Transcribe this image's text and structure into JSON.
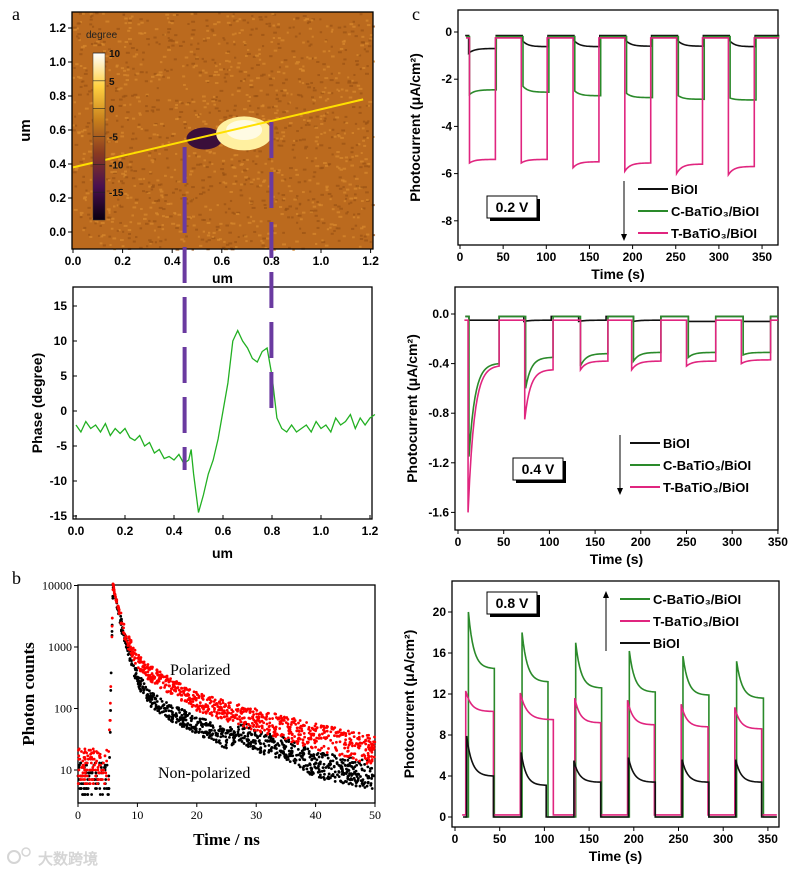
{
  "figure": {
    "panel_labels": {
      "a": "a",
      "b": "b",
      "c": "c"
    },
    "watermark": "大数跨境"
  },
  "chart_data": [
    {
      "id": "a-afm",
      "type": "heatmap",
      "title": "",
      "xlabel": "um",
      "ylabel": "um",
      "xlim": [
        0,
        1.2
      ],
      "ylim": [
        -0.1,
        1.3
      ],
      "xticks": [
        0,
        0.2,
        0.4,
        0.6,
        0.8,
        1.0,
        1.2
      ],
      "xtick_labels": [
        "0.0",
        "0.2",
        "0.4",
        "0.6",
        "0.8",
        "1.0",
        "1.2"
      ],
      "yticks": [
        0,
        0.2,
        0.4,
        0.6,
        0.8,
        1.0,
        1.2
      ],
      "ytick_labels": [
        "0.0",
        "0.2",
        "0.4",
        "0.6",
        "0.8",
        "1.0",
        "1.2"
      ],
      "colorbar": {
        "label": "degree",
        "range": [
          -20,
          10
        ],
        "ticks": [
          10,
          5,
          0,
          -5,
          -10,
          -15
        ],
        "tick_labels": [
          "10",
          "5",
          "0",
          "-5",
          "-10",
          "-15"
        ]
      },
      "line_profile": {
        "from": [
          0,
          0.38
        ],
        "to": [
          1.17,
          0.78
        ],
        "color": "#ffe000"
      },
      "markers_um": [
        0.45,
        0.8
      ],
      "marker_color": "#6a3aa0"
    },
    {
      "id": "a-phase",
      "type": "line",
      "title": "",
      "xlabel": "um",
      "ylabel": "Phase (degree)",
      "xlim": [
        0,
        1.22
      ],
      "ylim": [
        -15,
        17
      ],
      "xticks": [
        0,
        0.2,
        0.4,
        0.6,
        0.8,
        1.0,
        1.2
      ],
      "xtick_labels": [
        "0.0",
        "0.2",
        "0.4",
        "0.6",
        "0.8",
        "1.0",
        "1.2"
      ],
      "yticks": [
        15,
        10,
        5,
        0,
        -5,
        -10,
        -15
      ],
      "ytick_labels": [
        "15",
        "10",
        "5",
        "0",
        "-5",
        "-10",
        "-15"
      ],
      "color": "#22b022",
      "x": [
        0,
        0.02,
        0.04,
        0.06,
        0.08,
        0.1,
        0.12,
        0.14,
        0.16,
        0.18,
        0.2,
        0.22,
        0.24,
        0.26,
        0.28,
        0.3,
        0.32,
        0.34,
        0.36,
        0.38,
        0.4,
        0.42,
        0.44,
        0.46,
        0.47,
        0.48,
        0.5,
        0.52,
        0.54,
        0.56,
        0.58,
        0.6,
        0.62,
        0.64,
        0.66,
        0.68,
        0.7,
        0.72,
        0.74,
        0.76,
        0.78,
        0.8,
        0.82,
        0.84,
        0.86,
        0.88,
        0.9,
        0.92,
        0.94,
        0.96,
        0.98,
        1.0,
        1.02,
        1.04,
        1.06,
        1.08,
        1.1,
        1.12,
        1.14,
        1.16,
        1.18,
        1.2,
        1.22
      ],
      "y": [
        -2,
        -3,
        -1.5,
        -2.5,
        -2,
        -3,
        -1.8,
        -3.5,
        -2.5,
        -3.2,
        -2.5,
        -3.8,
        -4.2,
        -3.5,
        -5,
        -4.5,
        -6,
        -5.5,
        -6.8,
        -6.5,
        -7,
        -6.2,
        -7.5,
        -7,
        -5.5,
        -9,
        -14.5,
        -12,
        -9,
        -7,
        -4,
        0,
        4,
        10,
        11.5,
        10,
        9,
        7.5,
        7,
        8.5,
        9,
        5,
        -1,
        -2.5,
        -3,
        -2,
        -3,
        -2.5,
        -2,
        -3,
        -1.5,
        -2.5,
        -2,
        -3,
        -1,
        -2,
        -1.5,
        -0.5,
        -2.5,
        -1,
        -2,
        -1,
        -0.5
      ],
      "markers_um": [
        0.45,
        0.8
      ]
    },
    {
      "id": "b",
      "type": "scatter",
      "title": "",
      "xlabel": "Time / ns",
      "ylabel": "Photon counts",
      "yscale": "log",
      "xlim": [
        0,
        50
      ],
      "ylim": [
        3,
        10000
      ],
      "xticks": [
        0,
        10,
        20,
        30,
        40,
        50
      ],
      "xtick_labels": [
        "0",
        "10",
        "20",
        "30",
        "40",
        "50"
      ],
      "yticks": [
        10,
        100,
        1000,
        10000
      ],
      "ytick_labels": [
        "10",
        "100",
        "1000",
        "10000"
      ],
      "series": [
        {
          "name": "Polarized",
          "color": "#ff0000",
          "x": [
            0,
            5.2,
            5.9,
            7,
            8,
            10,
            12,
            15,
            20,
            25,
            30,
            35,
            40,
            45,
            50
          ],
          "y": [
            11,
            12,
            10000,
            3500,
            1500,
            600,
            380,
            250,
            130,
            90,
            65,
            48,
            35,
            27,
            20
          ]
        },
        {
          "name": "Non-polarized",
          "color": "#000000",
          "x": [
            0,
            5.2,
            5.9,
            7,
            8,
            10,
            12,
            15,
            20,
            25,
            27,
            30,
            35,
            40,
            45,
            50
          ],
          "y": [
            7,
            7,
            10000,
            3000,
            1200,
            300,
            150,
            90,
            55,
            32,
            45,
            30,
            22,
            12,
            10,
            8
          ]
        }
      ],
      "annotations": [
        "Polarized",
        "Non-polarized"
      ]
    },
    {
      "id": "c-0.2V",
      "type": "line",
      "title": "",
      "xlabel": "Time (s)",
      "ylabel": "Photocurrent (μA/cm²)",
      "xlim": [
        0,
        370
      ],
      "ylim": [
        -9,
        0.9
      ],
      "xticks": [
        0,
        50,
        100,
        150,
        200,
        250,
        300,
        350
      ],
      "xtick_labels": [
        "0",
        "50",
        "100",
        "150",
        "200",
        "250",
        "300",
        "350"
      ],
      "yticks": [
        0,
        -2,
        -4,
        -6,
        -8
      ],
      "ytick_labels": [
        "0",
        "-2",
        "-4",
        "-6",
        "-8"
      ],
      "bias_label": "0.2 V",
      "arrow": "down",
      "series": [
        {
          "name": "BiOI",
          "color": "#111111",
          "dark": -0.15,
          "cycles": [
            [
              10,
              42,
              -0.9,
              -0.7
            ],
            [
              72,
              102,
              -0.35,
              -0.62
            ],
            [
              132,
              162,
              -0.35,
              -0.62
            ],
            [
              192,
              222,
              -0.35,
              -0.6
            ],
            [
              252,
              282,
              -0.35,
              -0.6
            ],
            [
              312,
              342,
              -0.35,
              -0.62
            ]
          ]
        },
        {
          "name": "C-BaTiO₃/BiOI",
          "color": "#2a8a2a",
          "dark": -0.2,
          "cycles": [
            [
              11,
              42,
              -2.65,
              -2.45
            ],
            [
              73,
              103,
              -2.3,
              -2.55
            ],
            [
              133,
              163,
              -2.5,
              -2.7
            ],
            [
              193,
              223,
              -2.6,
              -2.78
            ],
            [
              253,
              283,
              -2.7,
              -2.85
            ],
            [
              313,
              343,
              -2.8,
              -2.88
            ]
          ]
        },
        {
          "name": "T-BaTiO₃/BiOI",
          "color": "#e0257f",
          "dark": -0.25,
          "cycles": [
            [
              11,
              41,
              -5.55,
              -5.4
            ],
            [
              71,
              101,
              -5.55,
              -5.4
            ],
            [
              131,
              161,
              -5.75,
              -5.5
            ],
            [
              191,
              221,
              -5.9,
              -5.55
            ],
            [
              251,
              281,
              -6.0,
              -5.6
            ],
            [
              311,
              341,
              -6.05,
              -5.7
            ]
          ]
        }
      ]
    },
    {
      "id": "c-0.4V",
      "type": "line",
      "title": "",
      "xlabel": "Time (s)",
      "ylabel": "Photocurrent (μA/cm²)",
      "xlim": [
        0,
        350
      ],
      "ylim": [
        -1.75,
        0.2
      ],
      "xticks": [
        0,
        50,
        100,
        150,
        200,
        250,
        300,
        350
      ],
      "xtick_labels": [
        "0",
        "50",
        "100",
        "150",
        "200",
        "250",
        "300",
        "350"
      ],
      "yticks": [
        0,
        -0.4,
        -0.8,
        -1.2,
        -1.6
      ],
      "ytick_labels": [
        "0.0",
        "-0.4",
        "-0.8",
        "-1.2",
        "-1.6"
      ],
      "bias_label": "0.4 V",
      "arrow": "down",
      "series": [
        {
          "name": "BiOI",
          "color": "#111111",
          "dark": -0.02,
          "cycles": [
            [
              12,
              45,
              -0.05,
              -0.05
            ],
            [
              72,
              102,
              -0.06,
              -0.05
            ],
            [
              132,
              162,
              -0.06,
              -0.05
            ],
            [
              192,
              222,
              -0.06,
              -0.05
            ],
            [
              252,
              282,
              -0.06,
              -0.06
            ],
            [
              312,
              342,
              -0.06,
              -0.06
            ]
          ]
        },
        {
          "name": "C-BaTiO₃/BiOI",
          "color": "#2a8a2a",
          "dark": -0.02,
          "cycles": [
            [
              12,
              45,
              -1.15,
              -0.4
            ],
            [
              74,
              104,
              -0.6,
              -0.35
            ],
            [
              134,
              164,
              -0.42,
              -0.32
            ],
            [
              192,
              222,
              -0.38,
              -0.31
            ],
            [
              252,
              282,
              -0.35,
              -0.31
            ],
            [
              312,
              342,
              -0.33,
              -0.31
            ]
          ]
        },
        {
          "name": "T-BaTiO₃/BiOI",
          "color": "#e0257f",
          "dark": -0.05,
          "cycles": [
            [
              11,
              45,
              -1.6,
              -0.42
            ],
            [
              73,
              104,
              -0.85,
              -0.45
            ],
            [
              134,
              164,
              -0.45,
              -0.38
            ],
            [
              190,
              222,
              -0.45,
              -0.38
            ],
            [
              250,
              282,
              -0.42,
              -0.38
            ],
            [
              310,
              342,
              -0.4,
              -0.37
            ]
          ]
        }
      ]
    },
    {
      "id": "c-0.8V",
      "type": "line",
      "title": "",
      "xlabel": "Time (s)",
      "ylabel": "Photocurrent (μA/cm²)",
      "xlim": [
        0,
        360
      ],
      "ylim": [
        -1,
        23
      ],
      "xticks": [
        0,
        50,
        100,
        150,
        200,
        250,
        300,
        350
      ],
      "xtick_labels": [
        "0",
        "50",
        "100",
        "150",
        "200",
        "250",
        "300",
        "350"
      ],
      "yticks": [
        0,
        4,
        8,
        12,
        16,
        20
      ],
      "ytick_labels": [
        "0",
        "4",
        "8",
        "12",
        "16",
        "20"
      ],
      "bias_label": "0.8 V",
      "arrow": "up",
      "series": [
        {
          "name": "C-BaTiO₃/BiOI",
          "color": "#2a8a2a",
          "dark": 0,
          "cycles": [
            [
              15,
              44,
              20,
              14.5
            ],
            [
              75,
              104,
              18,
              13.2
            ],
            [
              135,
              164,
              17,
              12.6
            ],
            [
              195,
              224,
              16.2,
              12.2
            ],
            [
              255,
              284,
              15.7,
              11.9
            ],
            [
              315,
              345,
              15.2,
              11.6
            ]
          ]
        },
        {
          "name": "T-BaTiO₃/BiOI",
          "color": "#e0257f",
          "dark": 0.2,
          "cycles": [
            [
              12,
              43,
              12.3,
              10.3
            ],
            [
              73,
              110,
              12.1,
              9.5
            ],
            [
              134,
              163,
              11.6,
              9.2
            ],
            [
              193,
              223,
              11.4,
              9.0
            ],
            [
              253,
              283,
              11.0,
              8.8
            ],
            [
              313,
              343,
              10.7,
              8.6
            ]
          ]
        },
        {
          "name": "BiOI",
          "color": "#111111",
          "dark": 0,
          "cycles": [
            [
              13,
              43,
              7.9,
              4.0
            ],
            [
              74,
              102,
              6.3,
              3.1
            ],
            [
              133,
              163,
              5.5,
              3.4
            ],
            [
              194,
              224,
              5.8,
              3.4
            ],
            [
              254,
              284,
              5.6,
              3.4
            ],
            [
              314,
              343,
              5.6,
              3.4
            ]
          ]
        }
      ]
    }
  ]
}
